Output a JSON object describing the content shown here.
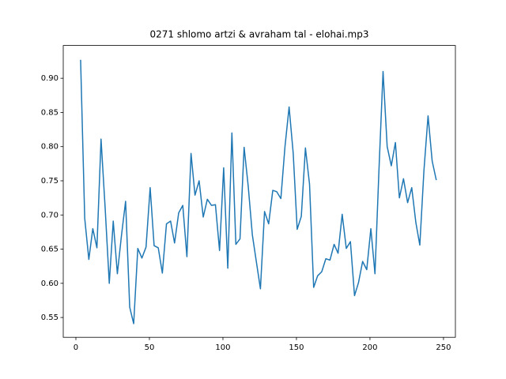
{
  "chart_data": {
    "type": "line",
    "title": "0271 shlomo artzi & avraham tal - elohai.mp3",
    "x": [
      3.2,
      6.0,
      8.8,
      11.5,
      14.3,
      17.1,
      19.9,
      22.7,
      25.4,
      28.2,
      31.0,
      33.8,
      36.6,
      39.3,
      42.1,
      44.9,
      47.7,
      50.5,
      53.2,
      56.0,
      58.8,
      61.6,
      64.4,
      67.1,
      69.9,
      72.7,
      75.5,
      78.3,
      81.0,
      83.8,
      86.6,
      89.4,
      92.2,
      94.9,
      97.7,
      100.5,
      103.3,
      106.1,
      108.8,
      111.6,
      114.4,
      117.2,
      120.0,
      122.7,
      125.5,
      128.3,
      131.1,
      133.9,
      136.6,
      139.4,
      142.2,
      145.0,
      147.8,
      150.5,
      153.3,
      156.1,
      158.9,
      161.7,
      164.4,
      167.2,
      170.0,
      172.8,
      175.6,
      178.3,
      181.1,
      183.9,
      186.7,
      189.5,
      192.2,
      195.0,
      197.8,
      200.6,
      203.4,
      206.1,
      208.9,
      211.7,
      214.5,
      217.3,
      220.0,
      222.8,
      225.6,
      228.4,
      231.2,
      233.9,
      236.7,
      239.5,
      242.3,
      245.1
    ],
    "series": [
      {
        "name": "elohai",
        "color": "#1f77b4",
        "values": [
          0.927,
          0.695,
          0.635,
          0.68,
          0.652,
          0.811,
          0.71,
          0.6,
          0.691,
          0.614,
          0.67,
          0.72,
          0.565,
          0.541,
          0.651,
          0.637,
          0.653,
          0.74,
          0.655,
          0.652,
          0.615,
          0.687,
          0.691,
          0.659,
          0.703,
          0.714,
          0.639,
          0.79,
          0.729,
          0.75,
          0.697,
          0.723,
          0.714,
          0.715,
          0.648,
          0.769,
          0.622,
          0.82,
          0.657,
          0.665,
          0.799,
          0.742,
          0.671,
          0.632,
          0.592,
          0.705,
          0.687,
          0.736,
          0.734,
          0.724,
          0.8,
          0.858,
          0.79,
          0.679,
          0.698,
          0.798,
          0.745,
          0.594,
          0.611,
          0.617,
          0.636,
          0.634,
          0.657,
          0.644,
          0.701,
          0.651,
          0.661,
          0.582,
          0.601,
          0.632,
          0.62,
          0.68,
          0.614,
          0.765,
          0.91,
          0.8,
          0.772,
          0.806,
          0.725,
          0.753,
          0.718,
          0.74,
          0.689,
          0.656,
          0.765,
          0.845,
          0.779,
          0.751
        ]
      }
    ],
    "xlim": [
      -8.6,
      258.1
    ],
    "xticks": [
      0,
      50,
      100,
      150,
      200,
      250
    ],
    "ylim": [
      0.521,
      0.948
    ],
    "yticks": [
      0.55,
      {
        "value": 0.6,
        "label": "0.60"
      },
      0.65,
      {
        "value": 0.7,
        "label": "0.70"
      },
      0.75,
      {
        "value": 0.8,
        "label": "0.80"
      },
      0.85,
      {
        "value": 0.9,
        "label": "0.90"
      }
    ]
  }
}
